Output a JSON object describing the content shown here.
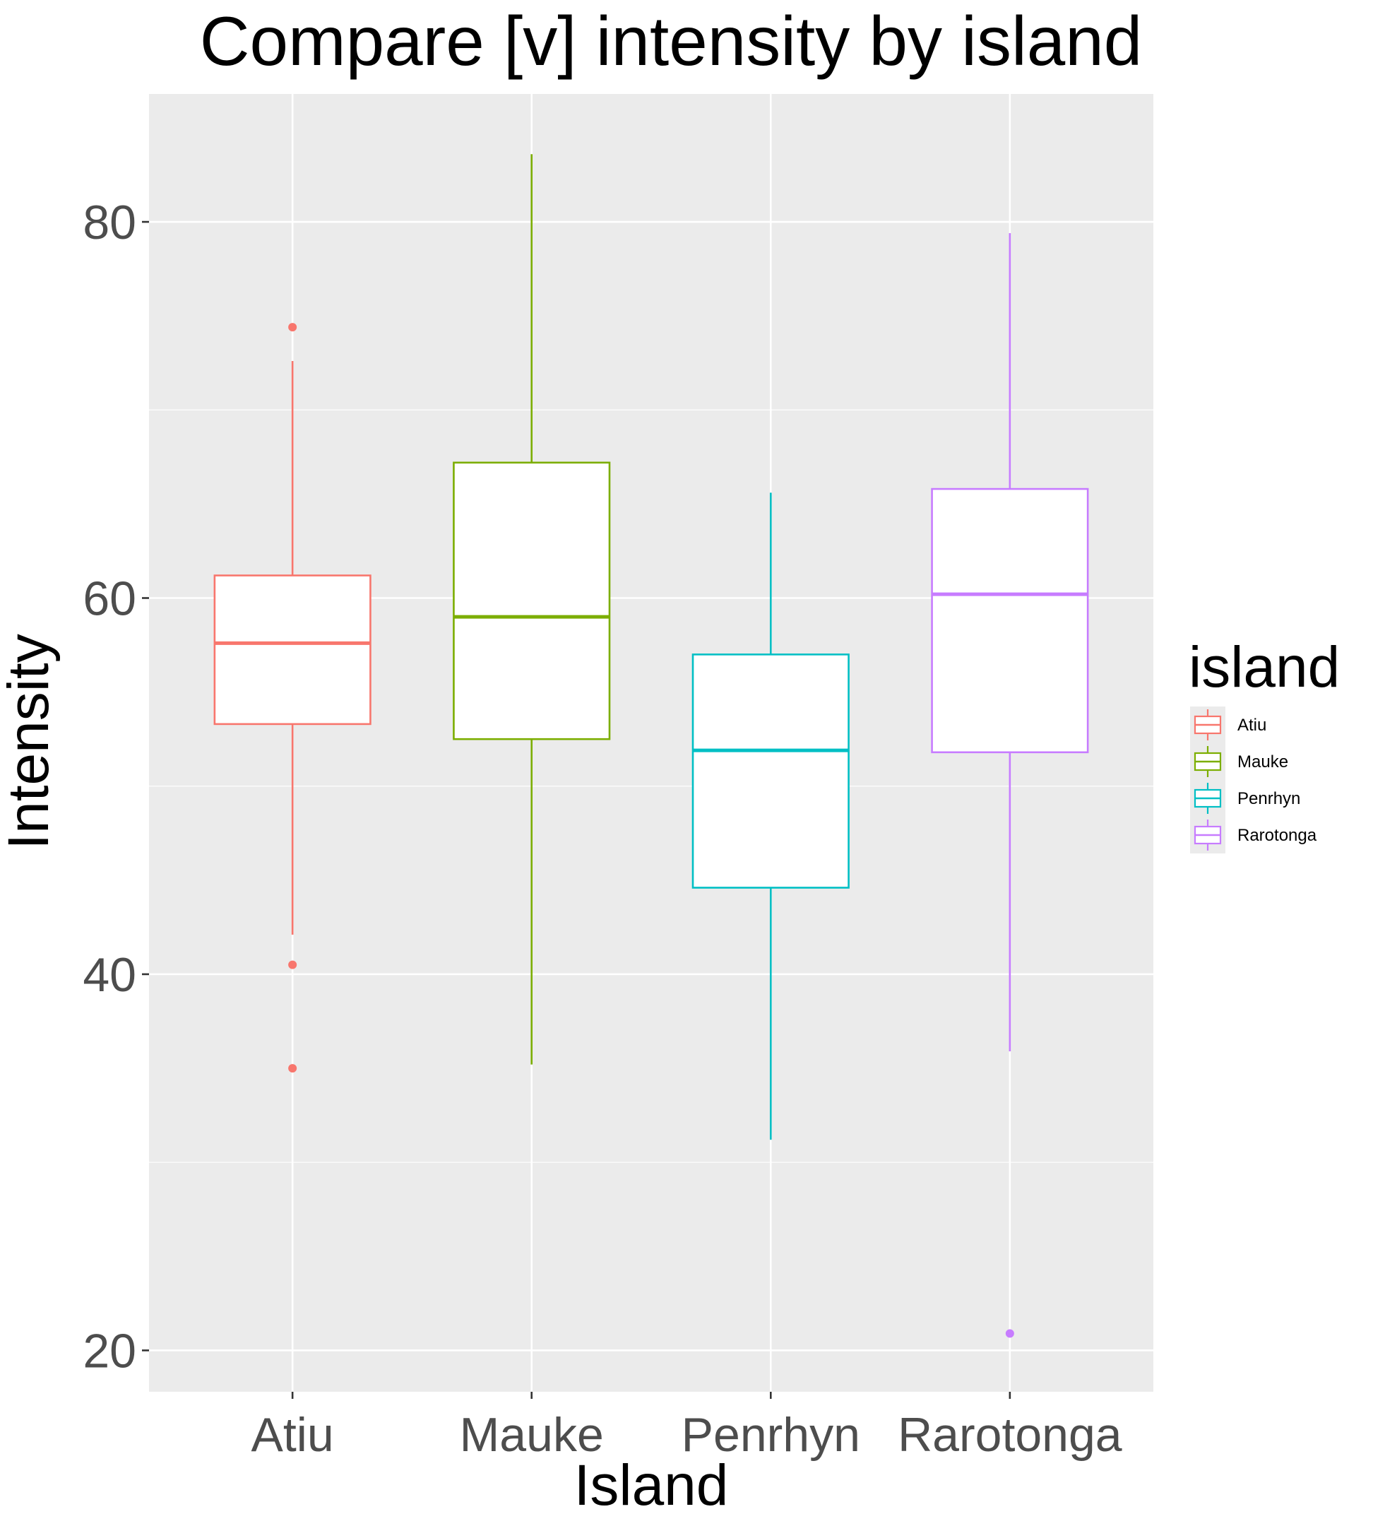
{
  "chart_data": {
    "type": "boxplot",
    "title": "Compare [v] intensity by island",
    "xlabel": "Island",
    "ylabel": "Intensity",
    "categories": [
      "Atiu",
      "Mauke",
      "Penrhyn",
      "Rarotonga"
    ],
    "ylim": [
      17.8,
      86.8
    ],
    "yticks": [
      20,
      40,
      60,
      80
    ],
    "grid": true,
    "legend": {
      "title": "island",
      "position": "right",
      "entries": [
        "Atiu",
        "Mauke",
        "Penrhyn",
        "Rarotonga"
      ]
    },
    "series": [
      {
        "name": "Atiu",
        "color": "#F8766D",
        "whisker_low": 42.1,
        "q1": 53.3,
        "median": 57.6,
        "q3": 61.2,
        "whisker_high": 72.6,
        "outliers": [
          74.4,
          40.5,
          35.0
        ]
      },
      {
        "name": "Mauke",
        "color": "#7CAE00",
        "whisker_low": 35.2,
        "q1": 52.5,
        "median": 59.0,
        "q3": 67.2,
        "whisker_high": 83.6,
        "outliers": []
      },
      {
        "name": "Penrhyn",
        "color": "#00BFC4",
        "whisker_low": 31.2,
        "q1": 44.6,
        "median": 51.9,
        "q3": 57.0,
        "whisker_high": 65.6,
        "outliers": []
      },
      {
        "name": "Rarotonga",
        "color": "#C77CFF",
        "whisker_low": 35.9,
        "q1": 51.8,
        "median": 60.2,
        "q3": 65.8,
        "whisker_high": 79.4,
        "outliers": [
          20.9
        ]
      }
    ]
  }
}
